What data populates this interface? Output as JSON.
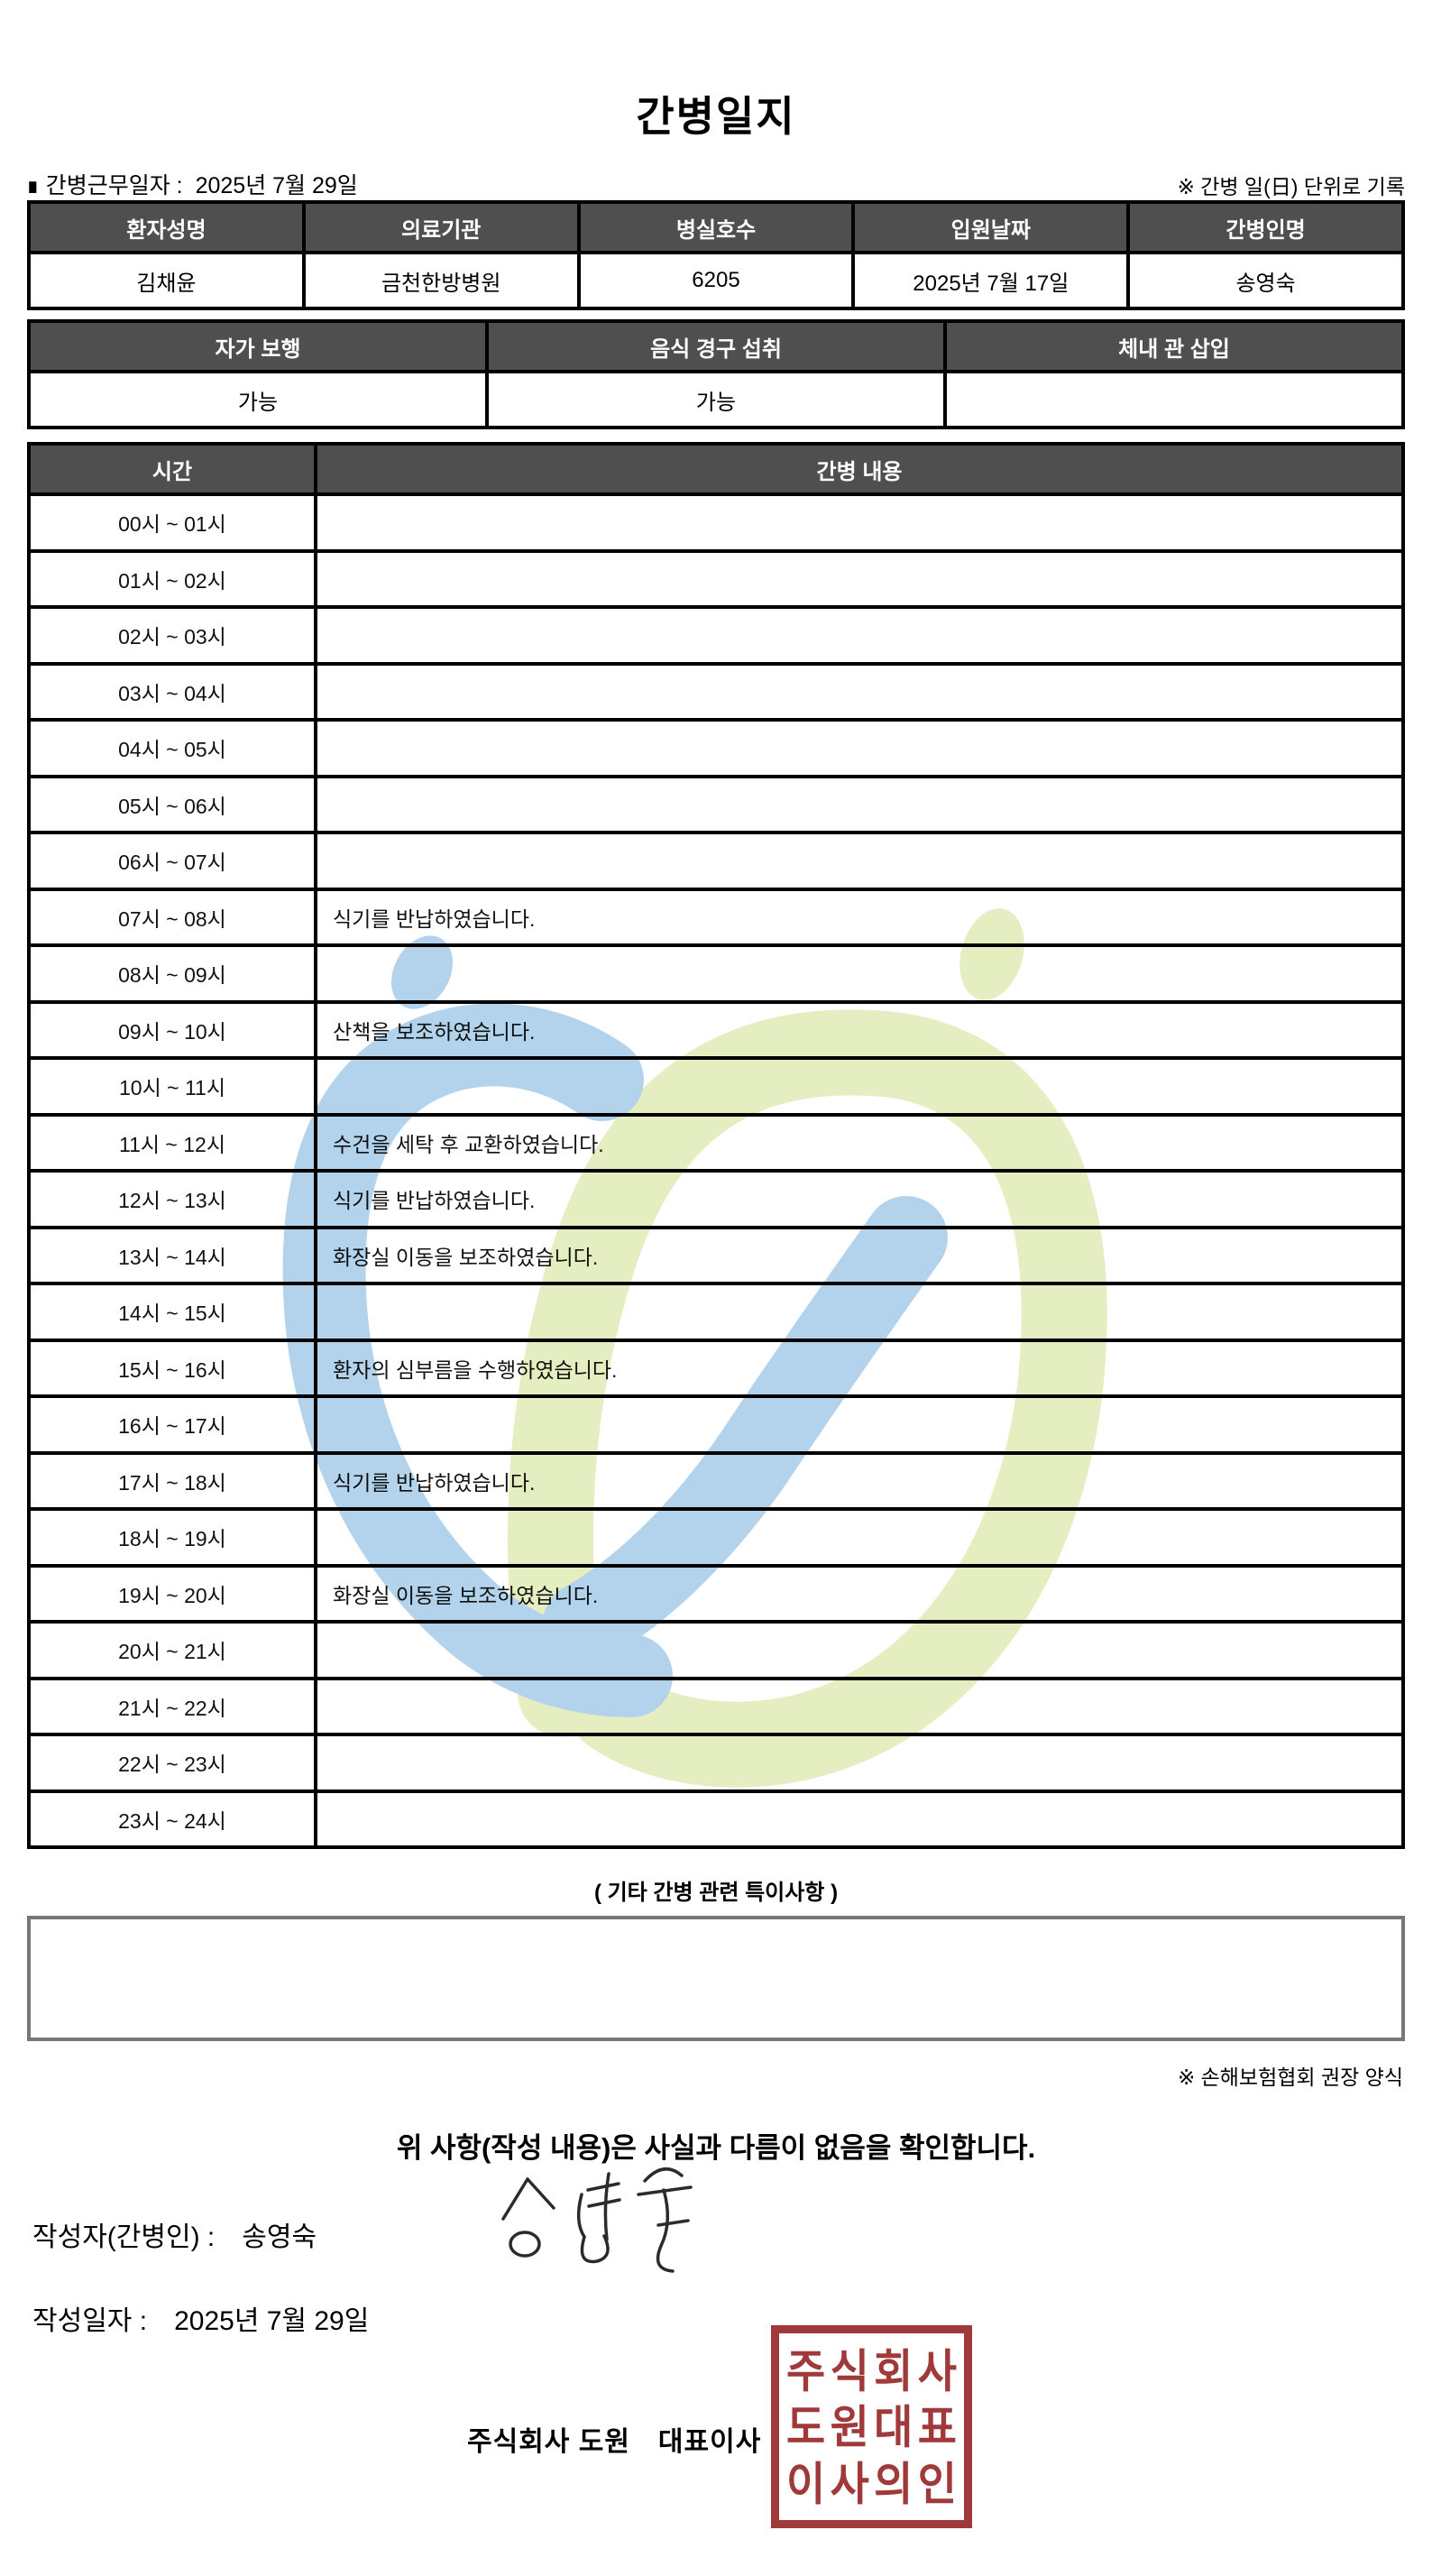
{
  "title": "간병일지",
  "meta": {
    "marker": "■",
    "work_date_label": "간병근무일자 :",
    "work_date": "2025년 7월 29일",
    "unit_note": "※ 간병 일(日) 단위로 기록"
  },
  "patient_table": {
    "headers": [
      "환자성명",
      "의료기관",
      "병실호수",
      "입원날짜",
      "간병인명"
    ],
    "values": [
      "김채윤",
      "금천한방병원",
      "6205",
      "2025년 7월 17일",
      "송영숙"
    ]
  },
  "status_table": {
    "headers": [
      "자가 보행",
      "음식 경구 섭취",
      "체내 관 삽입"
    ],
    "values": [
      "가능",
      "가능",
      ""
    ]
  },
  "care_table": {
    "time_header": "시간",
    "content_header": "간병 내용",
    "rows": [
      {
        "time": "00시 ~ 01시",
        "content": ""
      },
      {
        "time": "01시 ~ 02시",
        "content": ""
      },
      {
        "time": "02시 ~ 03시",
        "content": ""
      },
      {
        "time": "03시 ~ 04시",
        "content": ""
      },
      {
        "time": "04시 ~ 05시",
        "content": ""
      },
      {
        "time": "05시 ~ 06시",
        "content": ""
      },
      {
        "time": "06시 ~ 07시",
        "content": ""
      },
      {
        "time": "07시 ~ 08시",
        "content": "식기를 반납하였습니다."
      },
      {
        "time": "08시 ~ 09시",
        "content": ""
      },
      {
        "time": "09시 ~ 10시",
        "content": "산책을 보조하였습니다."
      },
      {
        "time": "10시 ~ 11시",
        "content": ""
      },
      {
        "time": "11시 ~ 12시",
        "content": "수건을 세탁 후 교환하였습니다."
      },
      {
        "time": "12시 ~ 13시",
        "content": "식기를 반납하였습니다."
      },
      {
        "time": "13시 ~ 14시",
        "content": "화장실 이동을 보조하였습니다."
      },
      {
        "time": "14시 ~ 15시",
        "content": ""
      },
      {
        "time": "15시 ~ 16시",
        "content": "환자의 심부름을 수행하였습니다."
      },
      {
        "time": "16시 ~ 17시",
        "content": ""
      },
      {
        "time": "17시 ~ 18시",
        "content": "식기를 반납하였습니다."
      },
      {
        "time": "18시 ~ 19시",
        "content": ""
      },
      {
        "time": "19시 ~ 20시",
        "content": "화장실 이동을 보조하였습니다."
      },
      {
        "time": "20시 ~ 21시",
        "content": ""
      },
      {
        "time": "21시 ~ 22시",
        "content": ""
      },
      {
        "time": "22시 ~ 23시",
        "content": ""
      },
      {
        "time": "23시 ~ 24시",
        "content": ""
      }
    ]
  },
  "notes": {
    "heading": "( 기타 간병 관련 특이사항 )",
    "content": "",
    "form_note": "※ 손해보험협회 권장 양식"
  },
  "footer": {
    "confirmation": "위 사항(작성 내용)은 사실과 다름이 없음을 확인합니다.",
    "writer_label": "작성자(간병인) :",
    "writer_name": "송영숙",
    "date_label": "작성일자 :",
    "date_value": "2025년 7월 29일",
    "company": "주식회사 도원　대표이사",
    "stamp_rows": [
      "주식회사",
      "도원대표",
      "이사의인"
    ]
  },
  "colors": {
    "header_bg": "#4f4f4f",
    "table_border": "#000000",
    "notes_border": "#777777",
    "seal_red": "#a03a3a",
    "watermark_blue": "#b3d3ec",
    "watermark_green": "#e4eec0",
    "signature_ink": "#2b2b2b"
  }
}
